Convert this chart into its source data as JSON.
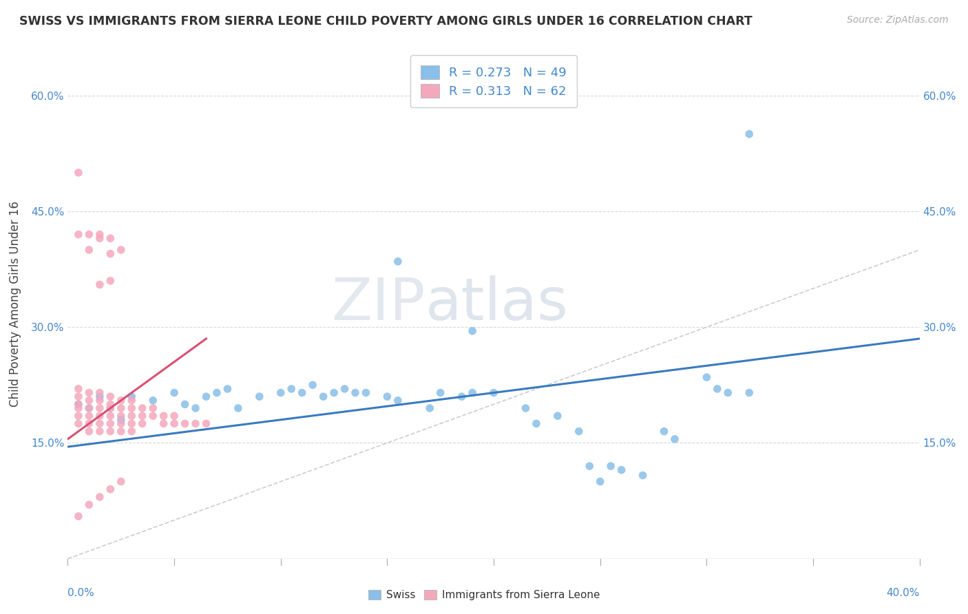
{
  "title": "SWISS VS IMMIGRANTS FROM SIERRA LEONE CHILD POVERTY AMONG GIRLS UNDER 16 CORRELATION CHART",
  "source": "Source: ZipAtlas.com",
  "ylabel": "Child Poverty Among Girls Under 16",
  "xlim": [
    0.0,
    0.4
  ],
  "ylim": [
    0.0,
    0.66
  ],
  "yticks": [
    0.15,
    0.3,
    0.45,
    0.6
  ],
  "ytick_labels": [
    "15.0%",
    "30.0%",
    "45.0%",
    "60.0%"
  ],
  "legend_swiss_r": "0.273",
  "legend_swiss_n": "49",
  "legend_sl_r": "0.313",
  "legend_sl_n": "62",
  "swiss_color": "#89bfe8",
  "sl_color": "#f4a8bc",
  "swiss_line_color": "#3a7abf",
  "sl_line_color": "#d94f72",
  "diagonal_color": "#c8c8c8",
  "watermark_zip": "ZIP",
  "watermark_atlas": "atlas",
  "swiss_scatter": [
    [
      0.005,
      0.2
    ],
    [
      0.01,
      0.195
    ],
    [
      0.015,
      0.21
    ],
    [
      0.02,
      0.195
    ],
    [
      0.025,
      0.18
    ],
    [
      0.03,
      0.21
    ],
    [
      0.04,
      0.205
    ],
    [
      0.05,
      0.215
    ],
    [
      0.055,
      0.2
    ],
    [
      0.06,
      0.195
    ],
    [
      0.065,
      0.21
    ],
    [
      0.07,
      0.215
    ],
    [
      0.075,
      0.22
    ],
    [
      0.08,
      0.195
    ],
    [
      0.09,
      0.21
    ],
    [
      0.1,
      0.215
    ],
    [
      0.105,
      0.22
    ],
    [
      0.11,
      0.215
    ],
    [
      0.115,
      0.225
    ],
    [
      0.12,
      0.21
    ],
    [
      0.125,
      0.215
    ],
    [
      0.13,
      0.22
    ],
    [
      0.135,
      0.215
    ],
    [
      0.14,
      0.215
    ],
    [
      0.15,
      0.21
    ],
    [
      0.155,
      0.205
    ],
    [
      0.17,
      0.195
    ],
    [
      0.175,
      0.215
    ],
    [
      0.185,
      0.21
    ],
    [
      0.19,
      0.215
    ],
    [
      0.2,
      0.215
    ],
    [
      0.215,
      0.195
    ],
    [
      0.22,
      0.175
    ],
    [
      0.23,
      0.185
    ],
    [
      0.24,
      0.165
    ],
    [
      0.245,
      0.12
    ],
    [
      0.25,
      0.1
    ],
    [
      0.255,
      0.12
    ],
    [
      0.26,
      0.115
    ],
    [
      0.27,
      0.108
    ],
    [
      0.28,
      0.165
    ],
    [
      0.285,
      0.155
    ],
    [
      0.3,
      0.235
    ],
    [
      0.305,
      0.22
    ],
    [
      0.31,
      0.215
    ],
    [
      0.32,
      0.215
    ],
    [
      0.155,
      0.385
    ],
    [
      0.19,
      0.295
    ],
    [
      0.32,
      0.55
    ]
  ],
  "sl_scatter": [
    [
      0.005,
      0.2
    ],
    [
      0.005,
      0.21
    ],
    [
      0.005,
      0.22
    ],
    [
      0.005,
      0.195
    ],
    [
      0.005,
      0.185
    ],
    [
      0.005,
      0.175
    ],
    [
      0.01,
      0.215
    ],
    [
      0.01,
      0.205
    ],
    [
      0.01,
      0.195
    ],
    [
      0.01,
      0.185
    ],
    [
      0.01,
      0.175
    ],
    [
      0.01,
      0.165
    ],
    [
      0.015,
      0.215
    ],
    [
      0.015,
      0.205
    ],
    [
      0.015,
      0.195
    ],
    [
      0.015,
      0.185
    ],
    [
      0.015,
      0.175
    ],
    [
      0.015,
      0.165
    ],
    [
      0.02,
      0.21
    ],
    [
      0.02,
      0.2
    ],
    [
      0.02,
      0.195
    ],
    [
      0.02,
      0.185
    ],
    [
      0.02,
      0.175
    ],
    [
      0.02,
      0.165
    ],
    [
      0.025,
      0.205
    ],
    [
      0.025,
      0.195
    ],
    [
      0.025,
      0.185
    ],
    [
      0.025,
      0.175
    ],
    [
      0.025,
      0.165
    ],
    [
      0.03,
      0.205
    ],
    [
      0.03,
      0.195
    ],
    [
      0.03,
      0.185
    ],
    [
      0.03,
      0.175
    ],
    [
      0.03,
      0.165
    ],
    [
      0.035,
      0.195
    ],
    [
      0.035,
      0.185
    ],
    [
      0.035,
      0.175
    ],
    [
      0.04,
      0.195
    ],
    [
      0.04,
      0.185
    ],
    [
      0.045,
      0.185
    ],
    [
      0.045,
      0.175
    ],
    [
      0.05,
      0.185
    ],
    [
      0.05,
      0.175
    ],
    [
      0.055,
      0.175
    ],
    [
      0.06,
      0.175
    ],
    [
      0.065,
      0.175
    ],
    [
      0.005,
      0.5
    ],
    [
      0.005,
      0.42
    ],
    [
      0.01,
      0.42
    ],
    [
      0.01,
      0.4
    ],
    [
      0.015,
      0.42
    ],
    [
      0.015,
      0.415
    ],
    [
      0.02,
      0.415
    ],
    [
      0.02,
      0.395
    ],
    [
      0.025,
      0.4
    ],
    [
      0.02,
      0.36
    ],
    [
      0.015,
      0.355
    ],
    [
      0.005,
      0.055
    ],
    [
      0.01,
      0.07
    ],
    [
      0.015,
      0.08
    ],
    [
      0.02,
      0.09
    ],
    [
      0.025,
      0.1
    ]
  ],
  "swiss_trendline": [
    [
      0.0,
      0.145
    ],
    [
      0.4,
      0.285
    ]
  ],
  "sl_trendline": [
    [
      0.0,
      0.155
    ],
    [
      0.065,
      0.285
    ]
  ]
}
